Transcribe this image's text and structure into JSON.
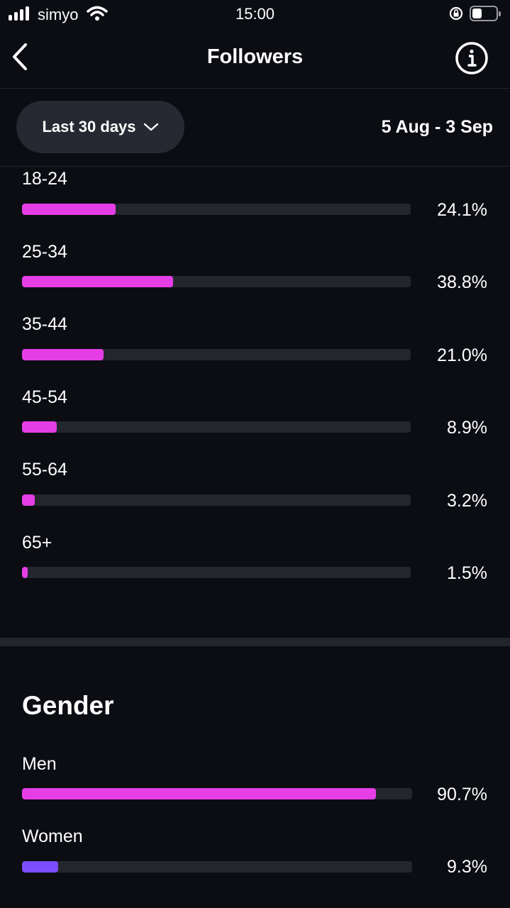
{
  "status_bar": {
    "carrier": "simyo",
    "time": "15:00",
    "battery_level": 0.4
  },
  "header": {
    "title": "Followers",
    "back_icon": "chevron-left-icon",
    "info_icon": "info-icon"
  },
  "filter": {
    "period_label": "Last 30 days",
    "dropdown_icon": "chevron-down-icon",
    "date_range": "5 Aug - 3 Sep"
  },
  "age": {
    "rows": [
      {
        "label": "18-24",
        "value": "24.1%",
        "fraction": 0.241
      },
      {
        "label": "25-34",
        "value": "38.8%",
        "fraction": 0.388
      },
      {
        "label": "35-44",
        "value": "21.0%",
        "fraction": 0.21
      },
      {
        "label": "45-54",
        "value": "8.9%",
        "fraction": 0.089
      },
      {
        "label": "55-64",
        "value": "3.2%",
        "fraction": 0.032
      },
      {
        "label": "65+",
        "value": "1.5%",
        "fraction": 0.015
      }
    ]
  },
  "gender": {
    "title": "Gender",
    "rows": [
      {
        "label": "Men",
        "value": "90.7%",
        "fraction": 0.907
      },
      {
        "label": "Women",
        "value": "9.3%",
        "fraction": 0.093
      }
    ]
  },
  "colors": {
    "background": "#0b0d13",
    "bar_pink": "#e63ee6",
    "bar_purple": "#7c4dff",
    "track": "#24262d"
  }
}
